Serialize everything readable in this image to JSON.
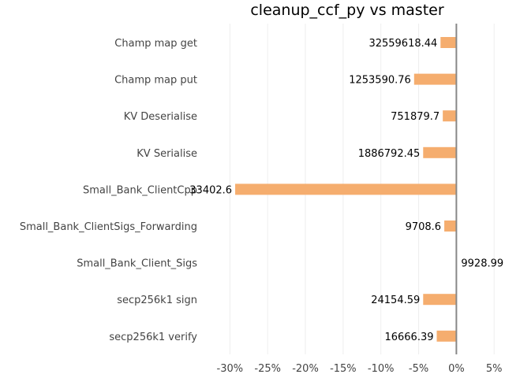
{
  "chart_data": {
    "type": "bar",
    "orientation": "horizontal",
    "title": "cleanup_ccf_py vs master",
    "categories": [
      "Champ map get",
      "Champ map put",
      "KV Deserialise",
      "KV Serialise",
      "Small_Bank_ClientCpp",
      "Small_Bank_ClientSigs_Forwarding",
      "Small_Bank_Client_Sigs",
      "secp256k1 sign",
      "secp256k1 verify"
    ],
    "values": [
      -2.1,
      -5.6,
      -1.8,
      -4.4,
      -29.3,
      -1.6,
      0,
      -4.4,
      -2.6
    ],
    "data_labels": [
      "32559618.44",
      "1253590.76",
      "751879.7",
      "1886792.45",
      "33402.6",
      "9708.6",
      "9928.99",
      "24154.59",
      "16666.39"
    ],
    "x_ticks": [
      "-30%",
      "-25%",
      "-20%",
      "-15%",
      "-10%",
      "-5%",
      "0%",
      "5%"
    ],
    "x_tick_values": [
      -30,
      -25,
      -20,
      -15,
      -10,
      -5,
      0,
      5
    ],
    "xlim": [
      -31.5,
      5.5
    ],
    "grid": true,
    "colors": {
      "bar": "#f5ad6e",
      "zero_line": "#888888",
      "grid": "#eeeeee"
    }
  }
}
